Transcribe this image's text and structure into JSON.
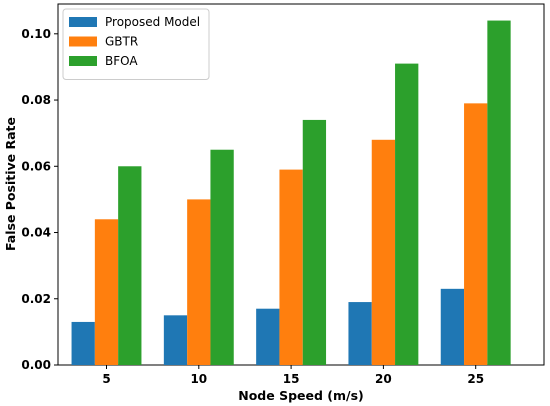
{
  "chart_data": {
    "type": "bar",
    "title": "",
    "xlabel": "Node Speed (m/s)",
    "ylabel": "False Positive Rate",
    "categories": [
      "5",
      "10",
      "15",
      "20",
      "25"
    ],
    "series": [
      {
        "name": "Proposed Model",
        "color": "#1f77b4",
        "values": [
          0.013,
          0.015,
          0.017,
          0.019,
          0.023
        ]
      },
      {
        "name": "GBTR",
        "color": "#ff7f0e",
        "values": [
          0.044,
          0.05,
          0.059,
          0.068,
          0.079
        ]
      },
      {
        "name": "BFOA",
        "color": "#2ca02c",
        "values": [
          0.06,
          0.065,
          0.074,
          0.091,
          0.104
        ]
      }
    ],
    "ylim": [
      0,
      0.109
    ],
    "yticks": [
      "0.00",
      "0.02",
      "0.04",
      "0.06",
      "0.08",
      "0.10"
    ],
    "grid": false,
    "legend_position": "top-left"
  }
}
